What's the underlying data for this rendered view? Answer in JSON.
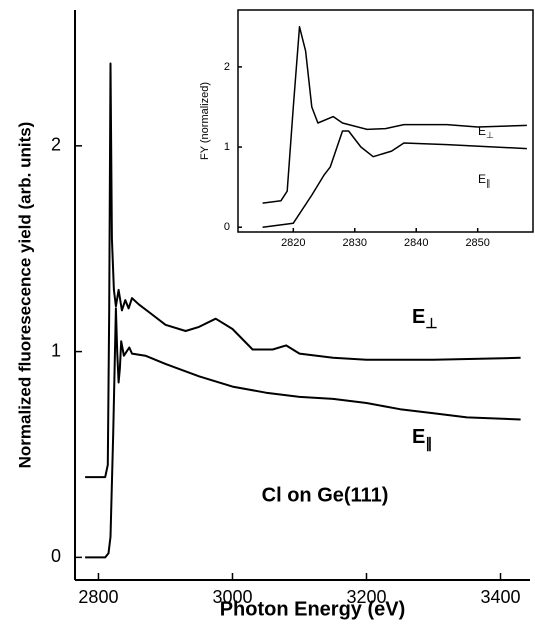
{
  "chart_data": [
    {
      "type": "line",
      "xlabel": "Photon Energy (eV)",
      "ylabel": "Normalized fluoresecence yield (arb. units)",
      "annotation": "Cl on Ge(111)",
      "xlim": [
        2765,
        3444
      ],
      "ylim": [
        -0.11,
        2.66
      ],
      "xticks": [
        2800,
        3000,
        3200,
        3400
      ],
      "yticks": [
        0,
        1,
        2
      ],
      "series": [
        {
          "label": {
            "text": "E",
            "sub": "⊥"
          },
          "color": "#000000",
          "x": [
            2780,
            2810,
            2814,
            2816,
            2818,
            2820,
            2823,
            2826,
            2830,
            2835,
            2840,
            2845,
            2850,
            2860,
            2880,
            2900,
            2930,
            2950,
            2975,
            3000,
            3030,
            3060,
            3080,
            3100,
            3150,
            3200,
            3300,
            3430
          ],
          "values": [
            0.39,
            0.39,
            0.45,
            1.2,
            2.4,
            1.55,
            1.3,
            1.22,
            1.3,
            1.2,
            1.25,
            1.21,
            1.26,
            1.23,
            1.18,
            1.13,
            1.1,
            1.12,
            1.16,
            1.11,
            1.01,
            1.01,
            1.03,
            0.99,
            0.97,
            0.96,
            0.96,
            0.97
          ]
        },
        {
          "label": {
            "text": "E",
            "sub": "∥"
          },
          "color": "#000000",
          "x": [
            2780,
            2810,
            2815,
            2818,
            2822,
            2826,
            2828,
            2830,
            2832,
            2834,
            2838,
            2842,
            2846,
            2850,
            2870,
            2900,
            2950,
            3000,
            3050,
            3100,
            3150,
            3200,
            3250,
            3300,
            3350,
            3430
          ],
          "values": [
            0.0,
            0.0,
            0.02,
            0.1,
            0.6,
            1.21,
            1.0,
            0.85,
            0.92,
            1.05,
            0.98,
            1.0,
            1.02,
            0.99,
            0.98,
            0.94,
            0.88,
            0.83,
            0.8,
            0.78,
            0.77,
            0.75,
            0.72,
            0.7,
            0.68,
            0.67
          ]
        }
      ]
    },
    {
      "type": "line",
      "ylabel": "FY (normalized)",
      "xlim": [
        2811,
        2859
      ],
      "ylim": [
        -0.06,
        2.71
      ],
      "xticks": [
        2820,
        2830,
        2840,
        2850
      ],
      "yticks": [
        0,
        1,
        2
      ],
      "series": [
        {
          "label": {
            "text": "E",
            "sub": "⊥"
          },
          "color": "#000000",
          "x": [
            2815,
            2818,
            2819,
            2820,
            2821,
            2822,
            2823,
            2824,
            2826.5,
            2828,
            2832,
            2835,
            2838,
            2845,
            2850,
            2858
          ],
          "values": [
            0.3,
            0.33,
            0.45,
            1.5,
            2.5,
            2.2,
            1.5,
            1.3,
            1.38,
            1.3,
            1.22,
            1.23,
            1.28,
            1.28,
            1.25,
            1.27
          ]
        },
        {
          "label": {
            "text": "E",
            "sub": "∥"
          },
          "color": "#000000",
          "x": [
            2815,
            2820,
            2823,
            2825,
            2826,
            2828,
            2829,
            2831,
            2833,
            2836,
            2838,
            2845,
            2858
          ],
          "values": [
            0.0,
            0.05,
            0.4,
            0.65,
            0.75,
            1.2,
            1.2,
            1.0,
            0.88,
            0.95,
            1.05,
            1.03,
            0.98
          ]
        }
      ]
    }
  ]
}
